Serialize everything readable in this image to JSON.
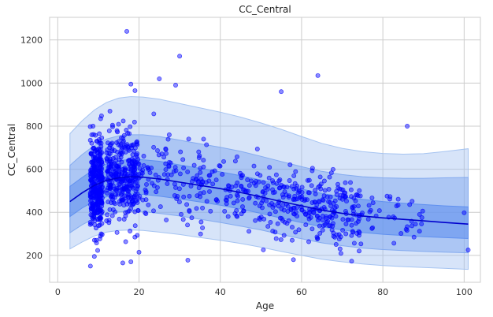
{
  "chart_data": {
    "type": "scatter",
    "title": "CC_Central",
    "xlabel": "Age",
    "ylabel": "CC_Central",
    "xlim": [
      -2,
      104
    ],
    "ylim": [
      75,
      1305
    ],
    "xticks": [
      0,
      20,
      40,
      60,
      80,
      100
    ],
    "yticks": [
      200,
      400,
      600,
      800,
      1000,
      1200
    ],
    "grid": true,
    "colors": {
      "points": "#0000ff",
      "centile_line": "#0000cd",
      "band_outer": "#9fbff0",
      "band_middle": "#7ea6ee",
      "band_inner": "#5b8def",
      "grid": "#cccccc",
      "frame": "#cccccc"
    },
    "centile_curve": {
      "x": [
        3,
        6,
        9,
        12,
        15,
        18,
        21,
        25,
        30,
        35,
        40,
        45,
        50,
        55,
        60,
        65,
        70,
        75,
        80,
        85,
        90,
        95,
        101
      ],
      "median": [
        450,
        490,
        525,
        548,
        560,
        565,
        563,
        555,
        540,
        525,
        510,
        492,
        472,
        450,
        430,
        410,
        395,
        383,
        374,
        367,
        360,
        353,
        345
      ],
      "inner_lower": [
        380,
        420,
        452,
        472,
        482,
        485,
        483,
        475,
        462,
        448,
        433,
        415,
        395,
        373,
        352,
        332,
        318,
        306,
        298,
        292,
        287,
        283,
        278
      ],
      "inner_upper": [
        520,
        562,
        600,
        625,
        640,
        646,
        644,
        637,
        620,
        604,
        588,
        570,
        550,
        528,
        508,
        488,
        472,
        460,
        450,
        442,
        436,
        430,
        425
      ],
      "middle_lower": [
        305,
        342,
        372,
        392,
        402,
        405,
        403,
        395,
        383,
        368,
        353,
        336,
        318,
        297,
        277,
        258,
        245,
        234,
        227,
        222,
        218,
        215,
        212
      ],
      "middle_upper": [
        618,
        668,
        710,
        740,
        755,
        760,
        760,
        752,
        735,
        718,
        702,
        683,
        660,
        636,
        612,
        590,
        575,
        565,
        560,
        558,
        558,
        560,
        562
      ],
      "outer_lower": [
        230,
        262,
        290,
        308,
        316,
        318,
        316,
        308,
        297,
        283,
        270,
        255,
        238,
        218,
        200,
        182,
        170,
        160,
        153,
        148,
        144,
        140,
        135
      ],
      "outer_upper": [
        765,
        825,
        875,
        910,
        930,
        937,
        935,
        925,
        905,
        885,
        865,
        842,
        815,
        785,
        752,
        720,
        697,
        682,
        673,
        670,
        672,
        682,
        695
      ]
    },
    "outlier_points": [
      {
        "x": 17,
        "y": 1240
      },
      {
        "x": 30,
        "y": 1125
      },
      {
        "x": 64,
        "y": 1035
      },
      {
        "x": 25,
        "y": 1020
      },
      {
        "x": 18,
        "y": 995
      },
      {
        "x": 29,
        "y": 990
      },
      {
        "x": 19,
        "y": 965
      },
      {
        "x": 55,
        "y": 960
      },
      {
        "x": 86,
        "y": 800
      },
      {
        "x": 32,
        "y": 178
      },
      {
        "x": 58,
        "y": 180
      },
      {
        "x": 16,
        "y": 165
      },
      {
        "x": 18,
        "y": 170
      },
      {
        "x": 20,
        "y": 215
      },
      {
        "x": 101,
        "y": 225
      },
      {
        "x": 9,
        "y": 195
      },
      {
        "x": 100,
        "y": 398
      }
    ],
    "point_cloud": [
      {
        "x0": 8,
        "x1": 11,
        "n": 330,
        "spread": 1.0
      },
      {
        "x0": 12,
        "x1": 20,
        "n": 330,
        "spread": 0.95
      },
      {
        "x0": 20,
        "x1": 40,
        "n": 130,
        "spread": 0.85
      },
      {
        "x0": 40,
        "x1": 55,
        "n": 110,
        "spread": 0.8
      },
      {
        "x0": 55,
        "x1": 75,
        "n": 230,
        "spread": 0.8
      },
      {
        "x0": 75,
        "x1": 90,
        "n": 35,
        "spread": 0.6
      }
    ]
  }
}
